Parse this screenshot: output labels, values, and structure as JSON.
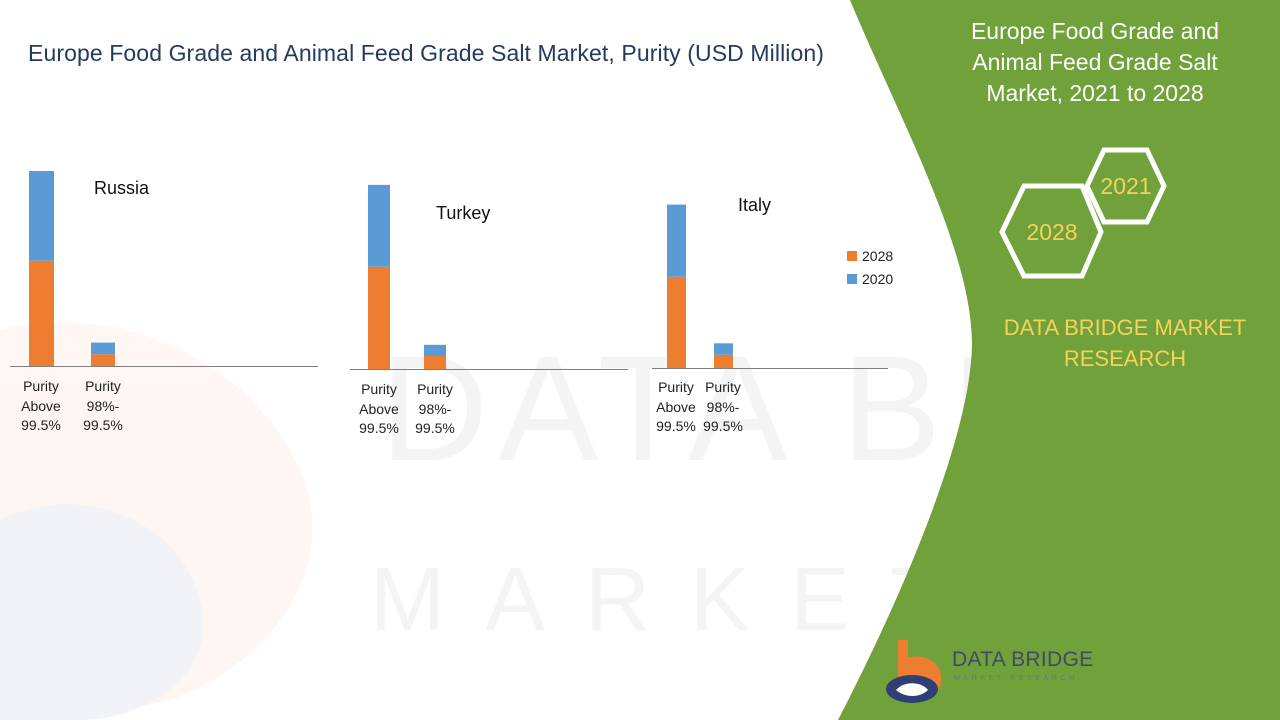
{
  "title": "Europe Food Grade and Animal Feed Grade Salt Market, Purity (USD Million)",
  "side_panel": {
    "title_lines": [
      "Europe Food Grade and",
      "Animal Feed Grade Salt",
      "Market, 2021 to 2028"
    ],
    "hex_years": [
      "2021",
      "2028"
    ],
    "brand_lines": [
      "DATA BRIDGE MARKET",
      "RESEARCH"
    ]
  },
  "logo": {
    "name": "DATA BRIDGE",
    "tagline": "MARKET RESEARCH"
  },
  "colors": {
    "s2028": "#ed7d31",
    "s2020": "#5b9bd5",
    "panel": "#70a13a",
    "accent": "#f5d25a"
  },
  "chart_data": [
    {
      "type": "bar",
      "stacked": true,
      "title": "Russia",
      "categories": [
        "Purity Above 99.5%",
        "Purity 98%-99.5%"
      ],
      "category_lines": [
        [
          "Purity",
          "Above",
          "99.5%"
        ],
        [
          "Purity",
          "98%-",
          "99.5%"
        ]
      ],
      "series": [
        {
          "name": "2028",
          "values": [
            54,
            6
          ]
        },
        {
          "name": "2020",
          "values": [
            46,
            6
          ]
        }
      ],
      "ylim": [
        0,
        100
      ],
      "legend": "none"
    },
    {
      "type": "bar",
      "stacked": true,
      "title": "Turkey",
      "categories": [
        "Purity Above 99.5%",
        "Purity 98%-99.5%"
      ],
      "category_lines": [
        [
          "Purity",
          "Above",
          "99.5%"
        ],
        [
          "Purity",
          "98%-",
          "99.5%"
        ]
      ],
      "series": [
        {
          "name": "2028",
          "values": [
            55,
            7
          ]
        },
        {
          "name": "2020",
          "values": [
            44,
            6
          ]
        }
      ],
      "ylim": [
        0,
        100
      ],
      "legend": "none"
    },
    {
      "type": "bar",
      "stacked": true,
      "title": "Italy",
      "categories": [
        "Purity Above 99.5%",
        "Purity 98%-99.5%"
      ],
      "category_lines": [
        [
          "Purity",
          "Above",
          "99.5%"
        ],
        [
          "Purity",
          "98%-",
          "99.5%"
        ]
      ],
      "series": [
        {
          "name": "2028",
          "values": [
            48,
            7
          ]
        },
        {
          "name": "2020",
          "values": [
            38,
            6
          ]
        }
      ],
      "ylim": [
        0,
        100
      ],
      "legend": "right",
      "legend_items": [
        "2028",
        "2020"
      ]
    }
  ]
}
